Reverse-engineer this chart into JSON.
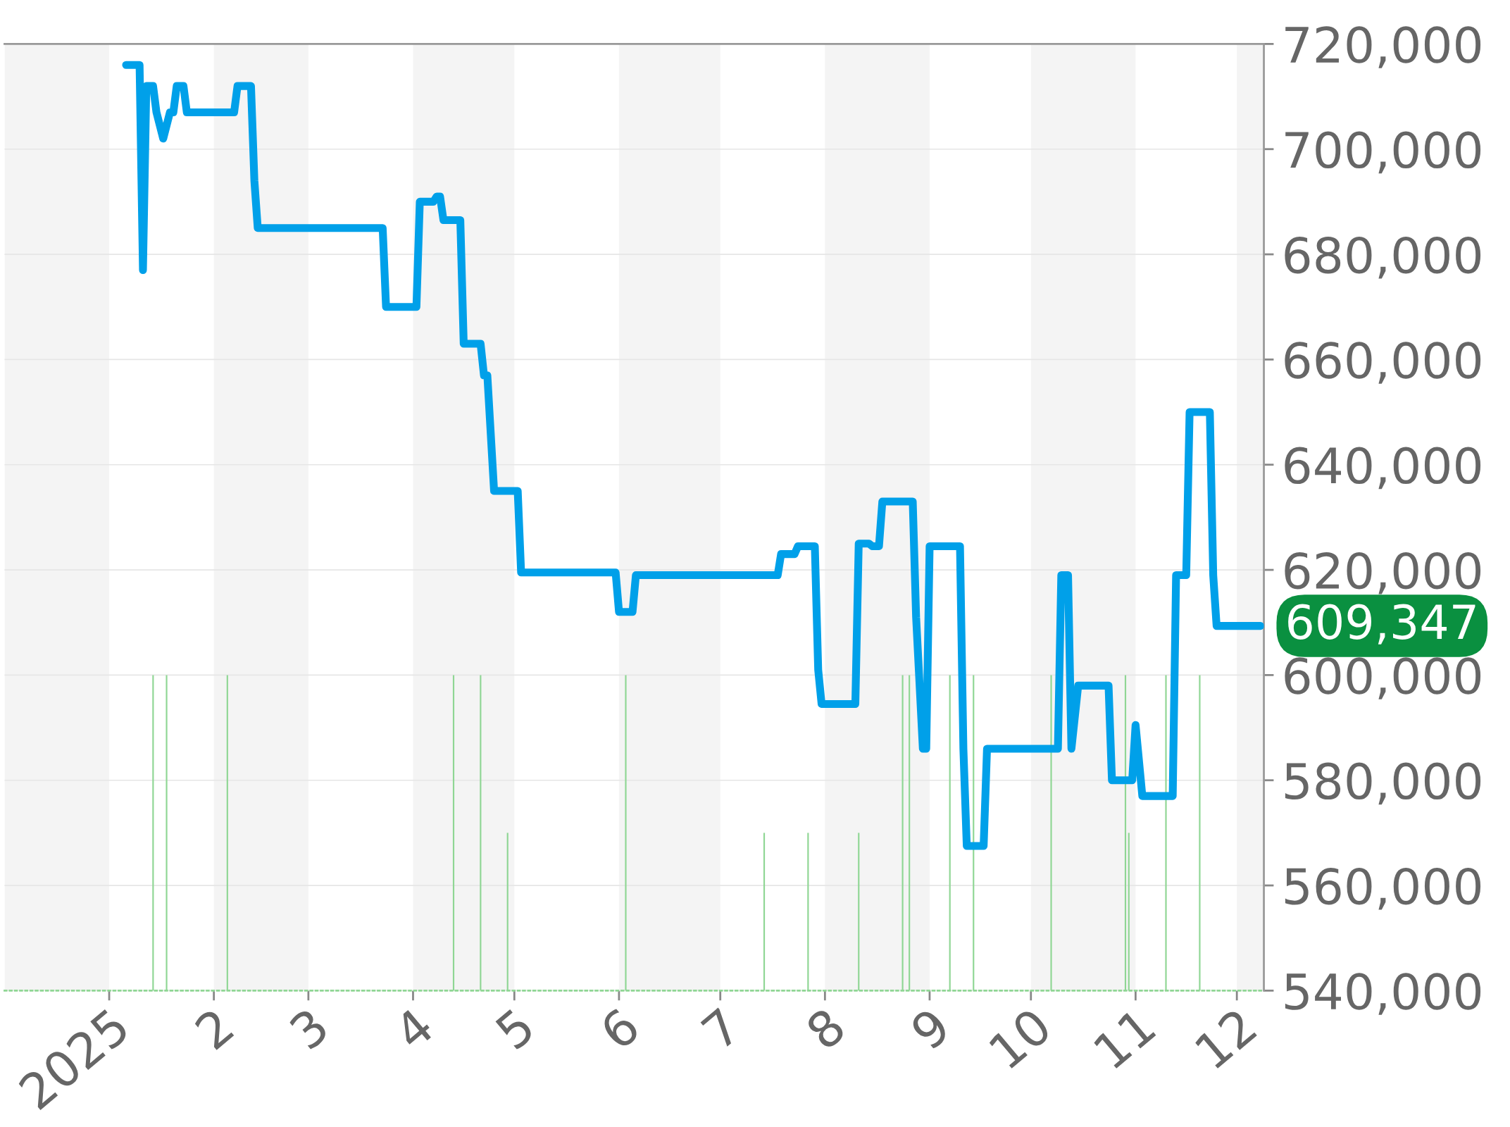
{
  "chart_data": {
    "type": "line",
    "x": [
      "2025-01-06",
      "2025-01-10",
      "2025-01-11",
      "2025-01-12",
      "2025-01-14",
      "2025-01-15",
      "2025-01-17",
      "2025-01-19",
      "2025-01-20",
      "2025-01-21",
      "2025-01-23",
      "2025-01-24",
      "2025-02-07",
      "2025-02-08",
      "2025-02-12",
      "2025-02-13",
      "2025-02-14",
      "2025-03-23",
      "2025-03-24",
      "2025-04-02",
      "2025-04-03",
      "2025-04-07",
      "2025-04-08",
      "2025-04-09",
      "2025-04-10",
      "2025-04-15",
      "2025-04-16",
      "2025-04-21",
      "2025-04-22",
      "2025-04-23",
      "2025-04-25",
      "2025-05-02",
      "2025-05-03",
      "2025-05-31",
      "2025-06-01",
      "2025-06-05",
      "2025-06-06",
      "2025-07-18",
      "2025-07-19",
      "2025-07-23",
      "2025-07-24",
      "2025-07-29",
      "2025-07-30",
      "2025-07-31",
      "2025-08-10",
      "2025-08-11",
      "2025-08-14",
      "2025-08-15",
      "2025-08-17",
      "2025-08-18",
      "2025-08-27",
      "2025-08-28",
      "2025-08-30",
      "2025-08-31",
      "2025-09-01",
      "2025-09-10",
      "2025-09-11",
      "2025-09-12",
      "2025-09-17",
      "2025-09-18",
      "2025-10-09",
      "2025-10-10",
      "2025-10-12",
      "2025-10-13",
      "2025-10-15",
      "2025-10-24",
      "2025-10-25",
      "2025-10-31",
      "2025-11-01",
      "2025-11-03",
      "2025-11-12",
      "2025-11-13",
      "2025-11-16",
      "2025-11-17",
      "2025-11-23",
      "2025-11-24",
      "2025-11-25",
      "2025-12-08"
    ],
    "series": [
      {
        "color": "#00a0e9",
        "values": [
          716000,
          716000,
          677000,
          712000,
          712000,
          707000,
          702000,
          707000,
          707000,
          712000,
          712000,
          707000,
          707000,
          712000,
          712000,
          694000,
          685000,
          685000,
          670000,
          670000,
          690000,
          690000,
          691000,
          691000,
          686500,
          686500,
          663000,
          663000,
          657000,
          657000,
          635000,
          635000,
          619500,
          619500,
          612000,
          612000,
          619000,
          619000,
          623000,
          623000,
          624500,
          624500,
          601000,
          594500,
          594500,
          625000,
          625000,
          624500,
          624500,
          633000,
          633000,
          611000,
          586000,
          586000,
          624500,
          624500,
          586000,
          567500,
          567500,
          586000,
          586000,
          619000,
          619000,
          586000,
          598000,
          598000,
          580000,
          580000,
          590500,
          577000,
          577000,
          619000,
          619000,
          650000,
          650000,
          619000,
          609347,
          609347
        ]
      },
      {
        "type": "bar",
        "color": "#8fd694",
        "x": [
          "2025-01-14",
          "2025-01-18",
          "2025-02-05",
          "2025-04-13",
          "2025-04-21",
          "2025-04-29",
          "2025-06-03",
          "2025-07-14",
          "2025-07-27",
          "2025-08-11",
          "2025-08-24",
          "2025-08-26",
          "2025-09-07",
          "2025-09-14",
          "2025-10-07",
          "2025-10-29",
          "2025-10-30",
          "2025-11-10",
          "2025-11-20"
        ],
        "base": [
          540000,
          540000,
          540000,
          540000,
          540000,
          540000,
          540000,
          540000,
          540000,
          540000,
          540000,
          540000,
          540000,
          540000,
          540000,
          540000,
          540000,
          540000,
          540000
        ],
        "values": [
          60000,
          60000,
          60000,
          60000,
          60000,
          30000,
          60000,
          30000,
          30000,
          30000,
          60000,
          60000,
          60000,
          60000,
          60000,
          60000,
          30000,
          60000,
          60000
        ]
      }
    ],
    "xlim": [
      "2024-12-01",
      "2025-12-09"
    ],
    "xticks": [
      {
        "value": "2025-01-01",
        "label": "2025"
      },
      {
        "value": "2025-02-01",
        "label": "2"
      },
      {
        "value": "2025-03-01",
        "label": "3"
      },
      {
        "value": "2025-04-01",
        "label": "4"
      },
      {
        "value": "2025-05-01",
        "label": "5"
      },
      {
        "value": "2025-06-01",
        "label": "6"
      },
      {
        "value": "2025-07-01",
        "label": "7"
      },
      {
        "value": "2025-08-01",
        "label": "8"
      },
      {
        "value": "2025-09-01",
        "label": "9"
      },
      {
        "value": "2025-10-01",
        "label": "10"
      },
      {
        "value": "2025-11-01",
        "label": "11"
      },
      {
        "value": "2025-12-01",
        "label": "12"
      }
    ],
    "ylim": [
      540000,
      720000
    ],
    "yticks": [
      {
        "value": 540000,
        "label": "540,000"
      },
      {
        "value": 560000,
        "label": "560,000"
      },
      {
        "value": 580000,
        "label": "580,000"
      },
      {
        "value": 600000,
        "label": "600,000"
      },
      {
        "value": 620000,
        "label": "620,000"
      },
      {
        "value": 640000,
        "label": "640,000"
      },
      {
        "value": 660000,
        "label": "660,000"
      },
      {
        "value": 680000,
        "label": "680,000"
      },
      {
        "value": 700000,
        "label": "700,000"
      },
      {
        "value": 720000,
        "label": "720,000"
      }
    ],
    "bands": [
      {
        "axis": "x",
        "from": "2024-12-01",
        "to": "2025-01-01",
        "color": "#f4f4f4"
      },
      {
        "axis": "x",
        "from": "2025-02-01",
        "to": "2025-03-01",
        "color": "#f4f4f4"
      },
      {
        "axis": "x",
        "from": "2025-04-01",
        "to": "2025-05-01",
        "color": "#f4f4f4"
      },
      {
        "axis": "x",
        "from": "2025-06-01",
        "to": "2025-07-01",
        "color": "#f4f4f4"
      },
      {
        "axis": "x",
        "from": "2025-08-01",
        "to": "2025-09-01",
        "color": "#f4f4f4"
      },
      {
        "axis": "x",
        "from": "2025-10-01",
        "to": "2025-11-01",
        "color": "#f4f4f4"
      },
      {
        "axis": "x",
        "from": "2025-12-01",
        "to": "2025-12-09",
        "color": "#f4f4f4"
      }
    ],
    "annotations": [
      {
        "text": "609,347",
        "x": "2025-12-08",
        "y": 609347
      }
    ],
    "grid": "y",
    "legend": false,
    "marker": "none",
    "line_style": "solid"
  }
}
